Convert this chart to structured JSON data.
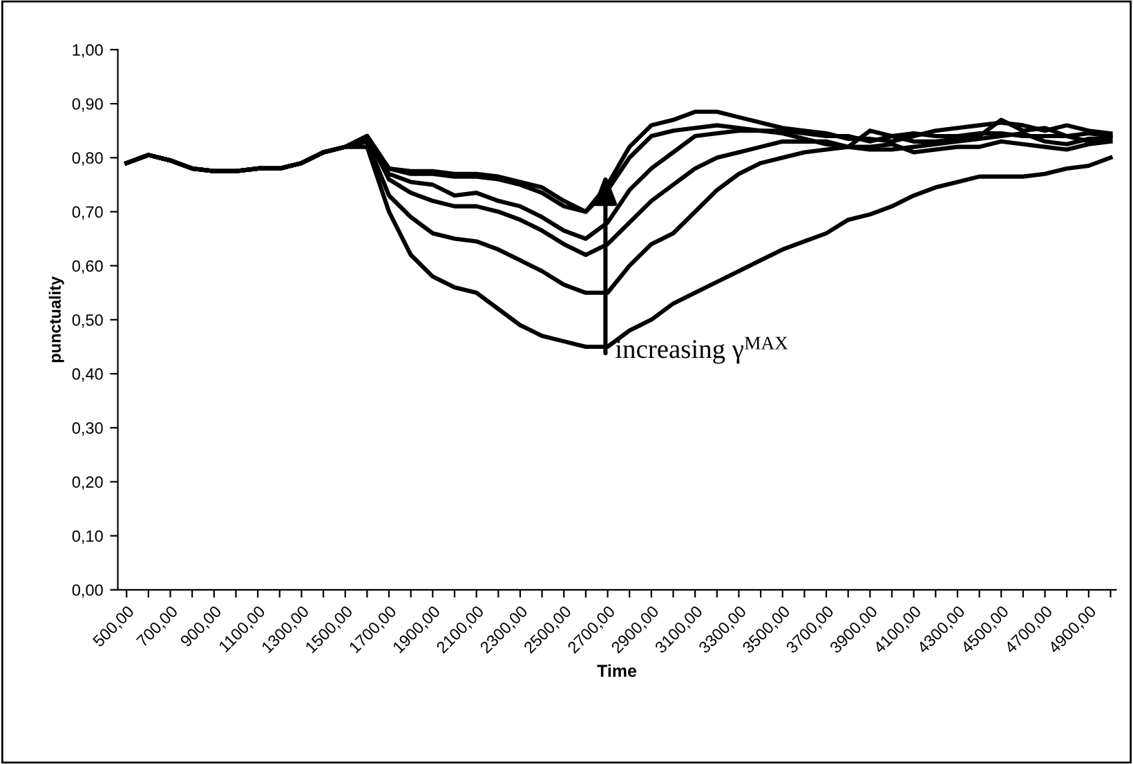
{
  "chart_data": {
    "type": "line",
    "xlabel": "Time",
    "ylabel": "punctuality",
    "categories": [
      "500,00",
      null,
      "700,00",
      null,
      "900,00",
      null,
      "1100,00",
      null,
      "1300,00",
      null,
      "1500,00",
      null,
      "1700,00",
      null,
      "1900,00",
      null,
      "2100,00",
      null,
      "2300,00",
      null,
      "2500,00",
      null,
      "2700,00",
      null,
      "2900,00",
      null,
      "3100,00",
      null,
      "3300,00",
      null,
      "3500,00",
      null,
      "3700,00",
      null,
      "3900,00",
      null,
      "4100,00",
      null,
      "4300,00",
      null,
      "4500,00",
      null,
      "4700,00",
      null,
      "4900,00",
      null
    ],
    "series": [
      {
        "color": "#000000",
        "values": [
          0.79,
          0.805,
          0.795,
          0.78,
          0.775,
          0.775,
          0.78,
          0.78,
          0.79,
          0.81,
          0.82,
          0.84,
          0.78,
          0.775,
          0.775,
          0.77,
          0.77,
          0.765,
          0.755,
          0.745,
          0.72,
          0.7,
          0.75,
          0.82,
          0.86,
          0.87,
          0.885,
          0.885,
          0.875,
          0.865,
          0.855,
          0.85,
          0.845,
          0.835,
          0.835,
          0.83,
          0.84,
          0.85,
          0.855,
          0.86,
          0.865,
          0.86,
          0.85,
          0.86,
          0.85,
          0.845
        ]
      },
      {
        "color": "#000000",
        "values": [
          0.79,
          0.805,
          0.795,
          0.78,
          0.775,
          0.775,
          0.78,
          0.78,
          0.79,
          0.81,
          0.82,
          0.84,
          0.78,
          0.77,
          0.77,
          0.765,
          0.765,
          0.76,
          0.75,
          0.735,
          0.71,
          0.7,
          0.74,
          0.8,
          0.84,
          0.85,
          0.855,
          0.86,
          0.855,
          0.85,
          0.85,
          0.845,
          0.84,
          0.84,
          0.83,
          0.84,
          0.845,
          0.84,
          0.84,
          0.845,
          0.845,
          0.84,
          0.84,
          0.84,
          0.845,
          0.84
        ]
      },
      {
        "color": "#000000",
        "values": [
          0.79,
          0.805,
          0.795,
          0.78,
          0.775,
          0.775,
          0.78,
          0.78,
          0.79,
          0.81,
          0.82,
          0.84,
          0.77,
          0.755,
          0.75,
          0.73,
          0.735,
          0.72,
          0.71,
          0.69,
          0.665,
          0.65,
          0.68,
          0.74,
          0.78,
          0.81,
          0.84,
          0.845,
          0.85,
          0.85,
          0.845,
          0.835,
          0.825,
          0.82,
          0.815,
          0.815,
          0.82,
          0.825,
          0.83,
          0.835,
          0.84,
          0.845,
          0.83,
          0.825,
          0.835,
          0.835
        ]
      },
      {
        "color": "#000000",
        "values": [
          0.79,
          0.805,
          0.795,
          0.78,
          0.775,
          0.775,
          0.78,
          0.78,
          0.79,
          0.81,
          0.82,
          0.84,
          0.76,
          0.735,
          0.72,
          0.71,
          0.71,
          0.7,
          0.685,
          0.665,
          0.64,
          0.62,
          0.64,
          0.68,
          0.72,
          0.75,
          0.78,
          0.8,
          0.81,
          0.82,
          0.83,
          0.83,
          0.83,
          0.82,
          0.85,
          0.84,
          0.83,
          0.83,
          0.835,
          0.84,
          0.87,
          0.85,
          0.855,
          0.84,
          0.83,
          0.84
        ]
      },
      {
        "color": "#000000",
        "values": [
          0.79,
          0.805,
          0.795,
          0.78,
          0.775,
          0.775,
          0.78,
          0.78,
          0.79,
          0.81,
          0.82,
          0.83,
          0.73,
          0.69,
          0.66,
          0.65,
          0.645,
          0.63,
          0.61,
          0.59,
          0.565,
          0.55,
          0.55,
          0.6,
          0.64,
          0.66,
          0.7,
          0.74,
          0.77,
          0.79,
          0.8,
          0.81,
          0.815,
          0.82,
          0.82,
          0.825,
          0.81,
          0.815,
          0.82,
          0.82,
          0.83,
          0.825,
          0.82,
          0.815,
          0.825,
          0.83
        ]
      },
      {
        "color": "#000000",
        "values": [
          0.79,
          0.805,
          0.795,
          0.78,
          0.775,
          0.775,
          0.78,
          0.78,
          0.79,
          0.81,
          0.82,
          0.82,
          0.7,
          0.62,
          0.58,
          0.56,
          0.55,
          0.52,
          0.49,
          0.47,
          0.46,
          0.45,
          0.45,
          0.48,
          0.5,
          0.53,
          0.55,
          0.57,
          0.59,
          0.61,
          0.63,
          0.645,
          0.66,
          0.685,
          0.695,
          0.71,
          0.73,
          0.745,
          0.755,
          0.765,
          0.765,
          0.765,
          0.77,
          0.78,
          0.785,
          0.8
        ]
      }
    ],
    "ylim": [
      0,
      1
    ],
    "yticks": [
      {
        "value": 0,
        "label": "0,00"
      },
      {
        "value": 0.1,
        "label": "0,10"
      },
      {
        "value": 0.2,
        "label": "0,20"
      },
      {
        "value": 0.3,
        "label": "0,30"
      },
      {
        "value": 0.4,
        "label": "0,40"
      },
      {
        "value": 0.5,
        "label": "0,50"
      },
      {
        "value": 0.6,
        "label": "0,60"
      },
      {
        "value": 0.7,
        "label": "0,70"
      },
      {
        "value": 0.8,
        "label": "0,80"
      },
      {
        "value": 0.9,
        "label": "0,90"
      },
      {
        "value": 1,
        "label": "1,00"
      }
    ],
    "grid": false,
    "legend": false,
    "marker": "none",
    "line_style": "solid",
    "annotations": [
      {
        "text": "increasing γ$^{MAX}$",
        "x": "2700,00",
        "y": 0.77
      }
    ]
  }
}
